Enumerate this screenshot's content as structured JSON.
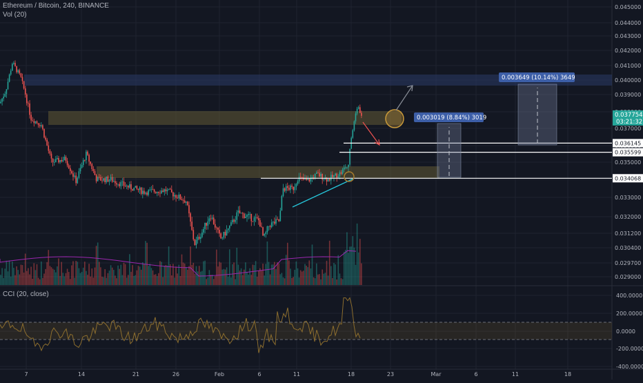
{
  "legend": {
    "symbol": "Ethereum / Bitcoin, 240, BINANCE",
    "volume": "Vol (20)",
    "cci": "CCI (20, close)"
  },
  "colors": {
    "background": "#131722",
    "up": "#26a69a",
    "down": "#ef5350",
    "grid": "#1f2330",
    "volume_ma": "#9c27b0",
    "cci_line": "#8d6e2e",
    "zone": "#5c5333",
    "resistance_zone": "#2a3a66",
    "measure_label": "#3d5fa8",
    "trendline": "#26c6da",
    "price_tag": "#26a69a"
  },
  "price_axis": {
    "ticks": [
      "0.045000",
      "0.044000",
      "0.043000",
      "0.042000",
      "0.041000",
      "0.040000",
      "0.039000",
      "0.038000",
      "0.037000",
      "0.036000",
      "0.035000",
      "0.034000",
      "0.033000",
      "0.032000",
      "0.031200",
      "0.030400",
      "0.029700",
      "0.029000"
    ],
    "current_price": "0.037754",
    "countdown": "03:21:32",
    "level_labels": [
      "0.036145",
      "0.035599",
      "0.034068"
    ]
  },
  "cci_axis": {
    "ticks": [
      "400.0000",
      "200.0000",
      "0.0000",
      "-200.0000",
      "-400.0000"
    ]
  },
  "time_axis": {
    "ticks": [
      "7",
      "14",
      "21",
      "26",
      "Feb",
      "6",
      "11",
      "18",
      "23",
      "Mar",
      "6",
      "11",
      "18"
    ]
  },
  "measurements": [
    {
      "label": "0.003019 (8.84%) 3019"
    },
    {
      "label": "0.003649 (10.14%) 3649"
    }
  ],
  "chart_data": {
    "type": "candlestick",
    "title": "Ethereum / Bitcoin, 240, BINANCE",
    "ylim": [
      0.0288,
      0.0458
    ],
    "cci_ylim": [
      -400,
      400
    ],
    "horizontal_levels": [
      0.036145,
      0.035599,
      0.034068
    ],
    "current_price": 0.037754
  }
}
